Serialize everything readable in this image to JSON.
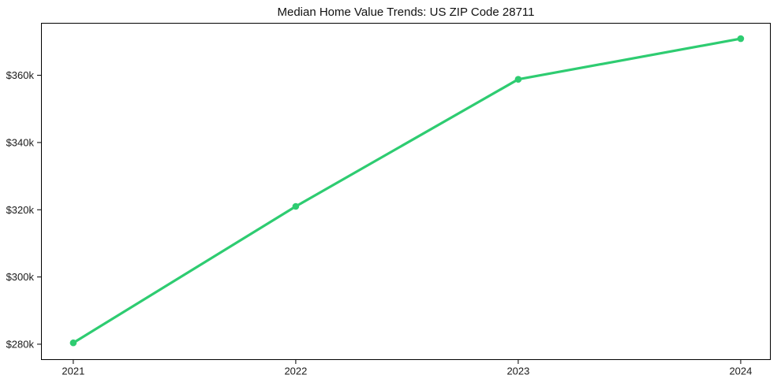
{
  "chart_data": {
    "type": "line",
    "title": "Median Home Value Trends: US ZIP Code 28711",
    "x": [
      2021,
      2022,
      2023,
      2024
    ],
    "values_usd_thousands": [
      280.4,
      321.0,
      358.8,
      370.9
    ],
    "x_tick_labels": [
      "2021",
      "2022",
      "2023",
      "2024"
    ],
    "y_ticks_usd_thousands": [
      280,
      300,
      320,
      340,
      360
    ],
    "y_tick_labels": [
      "$280k",
      "$300k",
      "$320k",
      "$340k",
      "$360k"
    ],
    "xlim": [
      2020.855,
      2024.135
    ],
    "ylim_usd_thousands": [
      275.3,
      375.6
    ],
    "xlabel": "",
    "ylabel": "",
    "grid": false,
    "legend": false,
    "line_color": "#2ecc71",
    "marker": "circle",
    "frame_color": "#000000",
    "text_color": "#1a1a1a",
    "background_color": "#ffffff"
  }
}
